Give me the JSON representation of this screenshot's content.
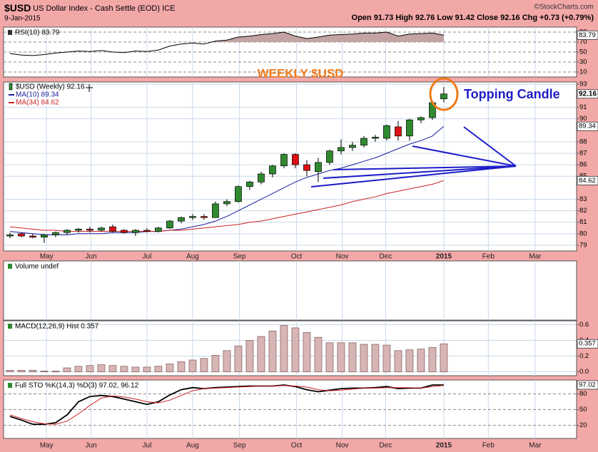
{
  "header": {
    "symbol": "$USD",
    "description": "US Dollar Index - Cash Settle (EOD) ICE",
    "date": "9-Jan-2015",
    "credit": "©StockCharts.com",
    "quote": [
      {
        "label": "Open",
        "value": 91.73
      },
      {
        "label": "High",
        "value": 92.76
      },
      {
        "label": "Low",
        "value": 91.42
      },
      {
        "label": "Close",
        "value": 92.16
      },
      {
        "label": "Chg",
        "value": "+0.73 (+0.79%)"
      }
    ]
  },
  "chart_data": [
    {
      "type": "area",
      "title": "RSI(10) 83.79",
      "color": "#000000",
      "fill": "#c4a3a3",
      "fill_above": 70,
      "ylim": [
        0,
        100
      ],
      "yticks": [
        90,
        70,
        50,
        30,
        10
      ],
      "values": [
        47,
        44,
        43,
        45,
        48,
        50,
        52,
        51,
        53,
        50,
        49,
        52,
        51,
        54,
        62,
        66,
        68,
        66,
        72,
        74,
        80,
        82,
        85,
        87,
        90,
        82,
        77,
        80,
        84,
        85,
        86,
        88,
        88,
        90,
        82,
        86,
        87,
        88,
        83.79
      ]
    },
    {
      "type": "candlestick",
      "title": "WEEKLY $USD",
      "annotation": "Topping Candle",
      "name": "$USD (Weekly) 92.16",
      "up_color": "#2f8a2f",
      "down_color": "#dd1111",
      "categories": [
        null,
        null,
        null,
        null,
        null,
        null,
        null,
        null,
        null,
        null,
        null,
        null,
        null,
        null,
        null,
        null,
        null,
        null,
        null,
        null,
        null,
        null,
        null,
        null,
        null,
        null,
        null,
        null,
        null,
        null,
        null,
        null,
        null,
        null,
        null,
        null,
        null,
        null,
        null
      ],
      "xlim": [
        -0.56,
        49.63
      ],
      "xticks": [
        {
          "value": 3.2,
          "label": "May"
        },
        {
          "value": 7.1,
          "label": "Jun"
        },
        {
          "value": 12,
          "label": "Jul"
        },
        {
          "value": 16,
          "label": "Aug"
        },
        {
          "value": 20.1,
          "label": "Sep"
        },
        {
          "value": 25.1,
          "label": "Oct"
        },
        {
          "value": 29.1,
          "label": "Nov"
        },
        {
          "value": 32.9,
          "label": "Dec"
        },
        {
          "value": 38,
          "label": "2015"
        },
        {
          "value": 41.9,
          "label": "Feb"
        },
        {
          "value": 46,
          "label": "Mar"
        }
      ],
      "ylim": [
        78.5,
        93.2
      ],
      "yticks": [
        93,
        91,
        90,
        88,
        87,
        86,
        85,
        83,
        82,
        81,
        80,
        79
      ],
      "open": [
        79.8,
        80.0,
        79.8,
        79.7,
        79.9,
        80.1,
        80.3,
        80.4,
        80.3,
        80.6,
        80.3,
        80.1,
        80.3,
        80.2,
        80.5,
        81.1,
        81.4,
        81.5,
        81.4,
        82.6,
        82.8,
        84.1,
        84.5,
        85.2,
        85.9,
        86.9,
        86.0,
        85.4,
        86.2,
        87.2,
        87.5,
        87.7,
        88.3,
        88.3,
        89.3,
        88.5,
        89.9,
        90.1,
        91.73
      ],
      "high": [
        80.1,
        80.1,
        80.0,
        80.0,
        80.2,
        80.4,
        80.5,
        80.6,
        80.6,
        80.8,
        80.4,
        80.4,
        80.5,
        80.6,
        81.2,
        81.5,
        81.7,
        81.7,
        82.8,
        83.0,
        84.2,
        84.6,
        85.4,
        86.0,
        87.0,
        87.0,
        86.4,
        86.6,
        87.3,
        88.2,
        88.0,
        88.5,
        88.6,
        89.5,
        89.8,
        90.0,
        90.2,
        91.5,
        92.76
      ],
      "low": [
        79.6,
        79.7,
        79.6,
        79.2,
        79.7,
        79.9,
        80.1,
        80.1,
        80.2,
        80.1,
        80.0,
        79.8,
        80.1,
        80.1,
        80.4,
        80.9,
        81.2,
        81.2,
        81.4,
        82.4,
        82.7,
        83.8,
        84.3,
        84.9,
        85.7,
        85.7,
        85.0,
        84.5,
        86.0,
        86.9,
        87.2,
        87.5,
        88.0,
        88.1,
        88.1,
        88.1,
        89.6,
        89.9,
        91.42
      ],
      "close": [
        79.9,
        79.8,
        79.7,
        79.9,
        80.1,
        80.3,
        80.4,
        80.3,
        80.5,
        80.2,
        80.1,
        80.3,
        80.2,
        80.5,
        81.1,
        81.4,
        81.5,
        81.4,
        82.6,
        82.8,
        84.1,
        84.5,
        85.2,
        85.9,
        86.9,
        86.0,
        85.5,
        86.2,
        87.2,
        87.5,
        87.7,
        88.3,
        88.4,
        89.4,
        88.5,
        89.9,
        90.1,
        91.4,
        92.16
      ],
      "series": [
        {
          "name": "MA(10) 89.34",
          "color": "#1c1c9e",
          "values": [
            80.2,
            80.1,
            80.0,
            79.9,
            79.9,
            79.9,
            80.0,
            80.0,
            80.0,
            80.1,
            80.1,
            80.1,
            80.2,
            80.2,
            80.3,
            80.4,
            80.6,
            80.8,
            81.1,
            81.5,
            82.0,
            82.5,
            83.0,
            83.5,
            84.0,
            84.5,
            84.9,
            85.2,
            85.5,
            85.7,
            86.0,
            86.3,
            86.6,
            87.0,
            87.4,
            87.8,
            88.1,
            88.5,
            89.34
          ]
        },
        {
          "name": "MA(34) 84.62",
          "color": "#cc2222",
          "values": [
            80.6,
            80.5,
            80.4,
            80.3,
            80.3,
            80.2,
            80.2,
            80.2,
            80.2,
            80.2,
            80.2,
            80.2,
            80.2,
            80.2,
            80.3,
            80.3,
            80.4,
            80.5,
            80.6,
            80.7,
            80.8,
            81.0,
            81.1,
            81.3,
            81.5,
            81.7,
            81.9,
            82.1,
            82.3,
            82.5,
            82.8,
            83.0,
            83.2,
            83.5,
            83.7,
            83.9,
            84.1,
            84.3,
            84.62
          ]
        }
      ]
    },
    {
      "type": "volume",
      "title": "Volume undef"
    },
    {
      "type": "bar",
      "title": "MACD(12,26,9) Hist 0.357",
      "color": "#d8b5b5",
      "edge": "#7a5555",
      "ylim": [
        -0.05,
        0.65
      ],
      "yticks": [
        0.6,
        0.4,
        0.2,
        {
          "value": 0,
          "label": "0.0"
        }
      ],
      "values": [
        0.02,
        0.02,
        0.02,
        0.01,
        0.01,
        0.05,
        0.07,
        0.08,
        0.09,
        0.08,
        0.07,
        0.06,
        0.06,
        0.07,
        0.1,
        0.13,
        0.15,
        0.17,
        0.21,
        0.27,
        0.33,
        0.4,
        0.45,
        0.52,
        0.59,
        0.56,
        0.5,
        0.44,
        0.37,
        0.37,
        0.37,
        0.35,
        0.35,
        0.34,
        0.27,
        0.28,
        0.29,
        0.31,
        0.357
      ]
    },
    {
      "type": "line",
      "title": "Full STO %K(14,3) %D(3) 97.02, 96.12",
      "ylim": [
        -5,
        106.5
      ],
      "yticks": [
        80,
        50,
        20
      ],
      "series": [
        {
          "name": "%K(14,3)",
          "color": "#000000",
          "values": [
            37,
            30,
            22,
            22,
            25,
            40,
            65,
            75,
            77,
            75,
            70,
            65,
            60,
            65,
            78,
            88,
            92,
            90,
            92,
            93,
            94,
            95,
            95,
            95,
            97,
            94,
            88,
            84,
            87,
            90,
            91,
            91,
            92,
            94,
            90,
            91,
            91,
            97,
            97.02
          ]
        },
        {
          "name": "%D(3)",
          "color": "#cc2222",
          "values": [
            40,
            33,
            27,
            23,
            22,
            28,
            42,
            58,
            72,
            76,
            74,
            70,
            65,
            63,
            68,
            77,
            86,
            90,
            91,
            92,
            93,
            94,
            95,
            95,
            96,
            95,
            93,
            88,
            86,
            87,
            89,
            91,
            91,
            92,
            92,
            92,
            91,
            94,
            96.12
          ]
        }
      ]
    }
  ]
}
